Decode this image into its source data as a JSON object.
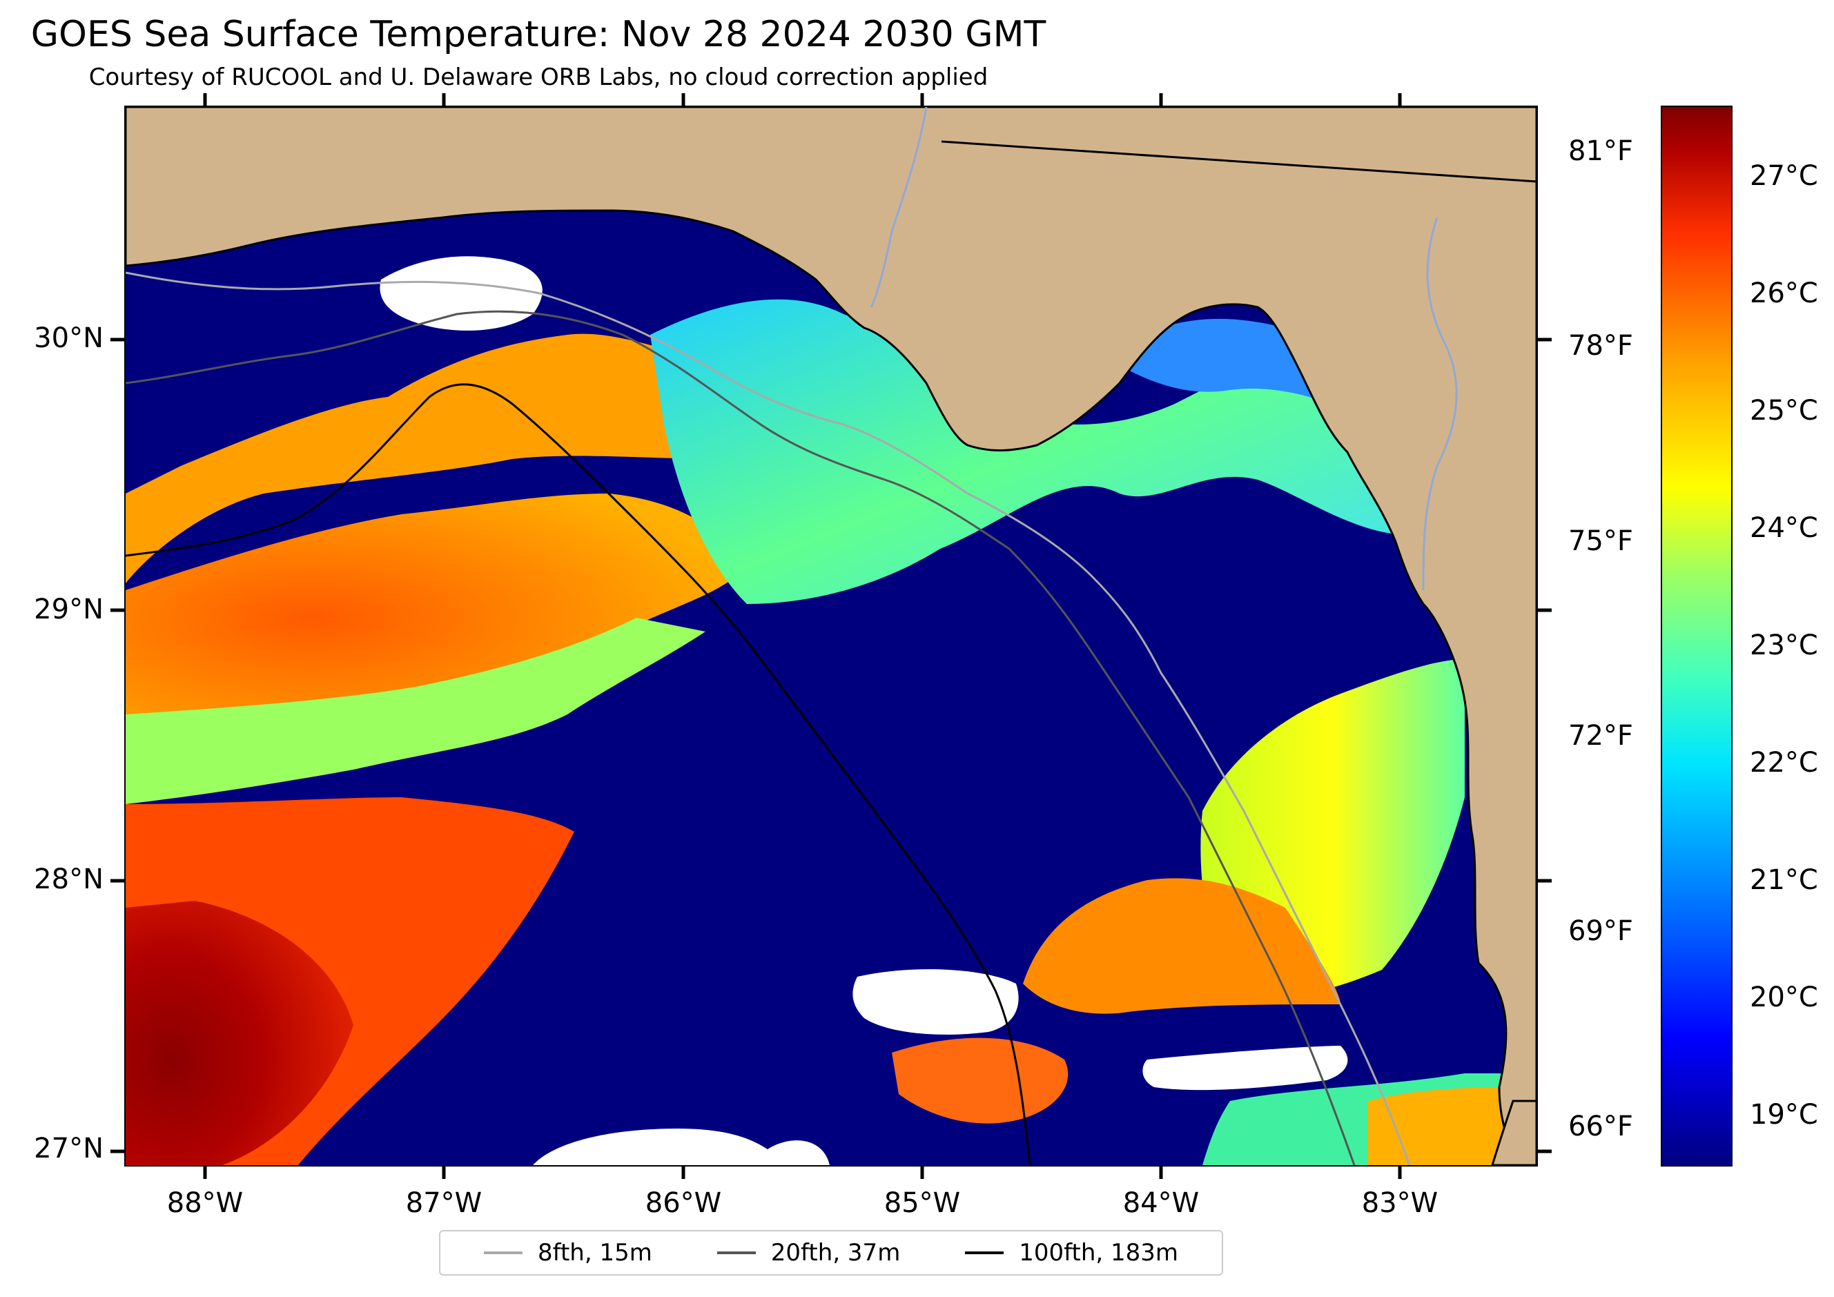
{
  "title": "GOES Sea Surface Temperature: Nov 28 2024 2030 GMT",
  "subtitle": "Courtesy of RUCOOL and U. Delaware ORB Labs, no cloud correction applied",
  "colors": {
    "land": "#d2b48c",
    "no_data": "#ffffff",
    "coast": "#000000",
    "rivers": "#92a9d4",
    "cold": "#00007f",
    "warm": "#800000"
  },
  "map": {
    "lon_range": [
      -88.33,
      -82.42
    ],
    "lat_range": [
      26.93,
      30.84
    ],
    "lat_labels": [
      "30°N",
      "29°N",
      "28°N",
      "27°N"
    ],
    "lon_labels": [
      "88°W",
      "87°W",
      "86°W",
      "85°W",
      "84°W",
      "83°W"
    ]
  },
  "fahrenheit_labels": [
    "81°F",
    "78°F",
    "75°F",
    "72°F",
    "69°F",
    "66°F"
  ],
  "colorbar": {
    "min_c": 18.6,
    "max_c": 27.6,
    "tick_labels": [
      "27°C",
      "26°C",
      "25°C",
      "24°C",
      "23°C",
      "22°C",
      "21°C",
      "20°C",
      "19°C"
    ]
  },
  "legend": [
    {
      "label": "8fth, 15m",
      "color": "#aaaaaa"
    },
    {
      "label": "20fth, 37m",
      "color": "#555555"
    },
    {
      "label": "100fth, 183m",
      "color": "#000000"
    }
  ]
}
